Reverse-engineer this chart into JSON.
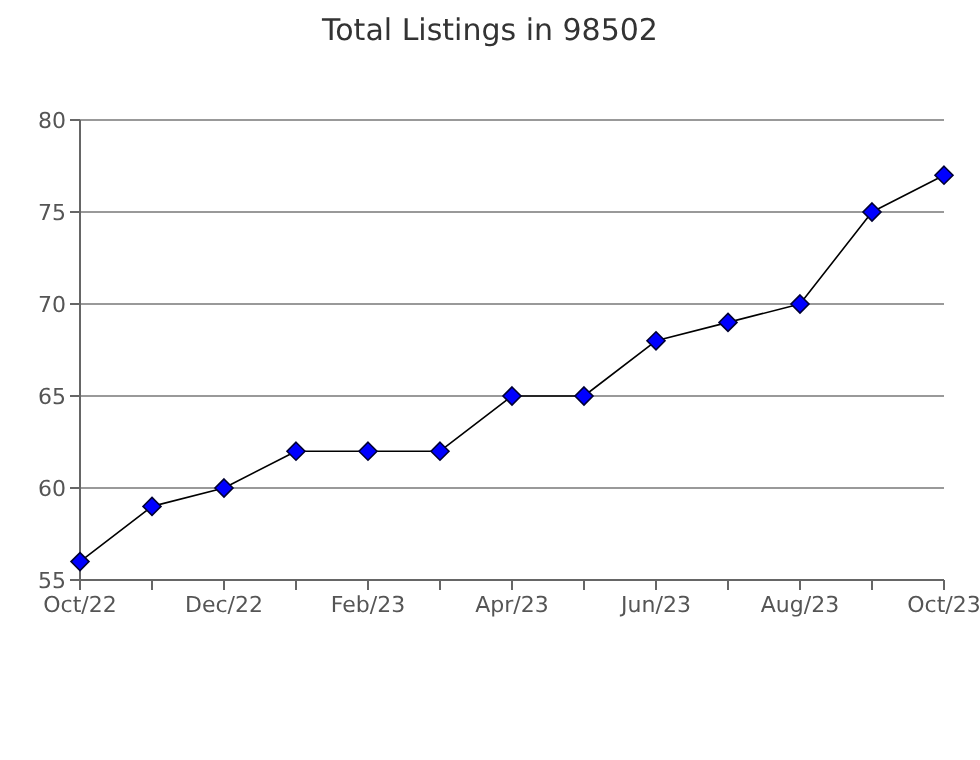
{
  "chart_data": {
    "type": "line",
    "title": "Total Listings in 98502",
    "categories": [
      "Oct/22",
      null,
      "Dec/22",
      null,
      "Feb/23",
      null,
      "Apr/23",
      null,
      "Jun/23",
      null,
      "Aug/23",
      null,
      "Oct/23"
    ],
    "series": [
      {
        "color": "#0000ff",
        "values": [
          56,
          59,
          60,
          62,
          62,
          62,
          65,
          65,
          68,
          69,
          70,
          75,
          77
        ]
      }
    ],
    "ylim": [
      55,
      80
    ],
    "yticks": [
      55,
      60,
      65,
      70,
      75,
      80
    ],
    "grid": "y",
    "marker": "diamond",
    "line_style": "solid"
  }
}
